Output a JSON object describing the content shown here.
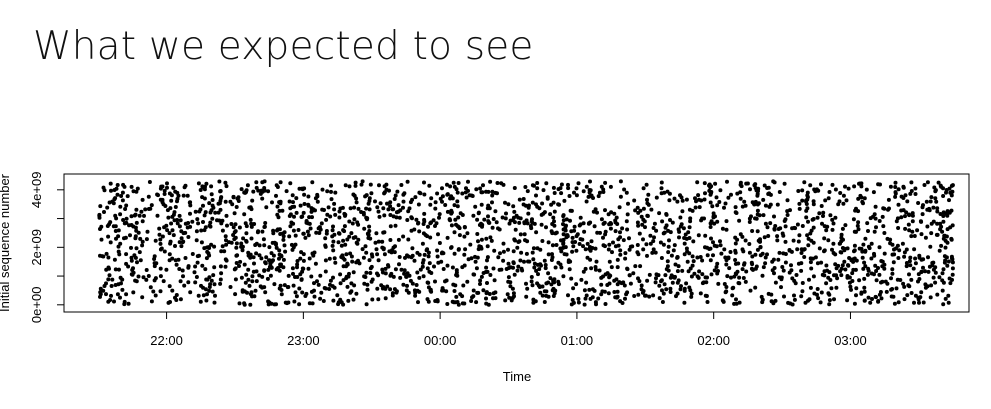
{
  "slide": {
    "title": "What we expected to see"
  },
  "colors": {
    "background": "#ffffff",
    "points": "#000000",
    "axes": "#000000"
  },
  "chart_data": {
    "type": "scatter",
    "xlabel": "Time",
    "ylabel": "Initial sequence number",
    "x_ticks": [
      "22:00",
      "23:00",
      "00:00",
      "01:00",
      "02:00",
      "03:00"
    ],
    "y_ticks": [
      "0e+00",
      "2e+09",
      "4e+09"
    ],
    "xlim": [
      "21:15",
      "03:52"
    ],
    "ylim": [
      -250000000,
      4550000000
    ],
    "y_range_of_values": [
      0,
      4294967295
    ],
    "x_range_of_values": [
      "21:30",
      "03:45"
    ],
    "distribution": "uniform random",
    "approx_point_count": 2600,
    "grid": false,
    "legend": "none",
    "box": true
  }
}
